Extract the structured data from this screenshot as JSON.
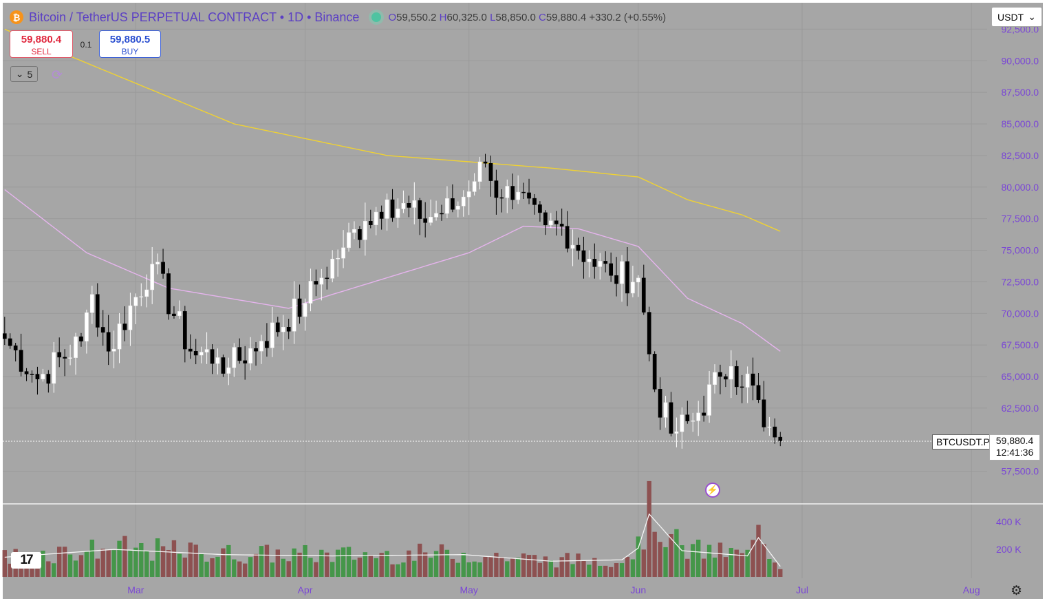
{
  "header": {
    "symbol": "Bitcoin / TetherUS PERPETUAL CONTRACT • 1D • Binance",
    "open_label": "O",
    "open": "59,550.2",
    "high_label": "H",
    "high": "60,325.0",
    "low_label": "L",
    "low": "58,850.0",
    "close_label": "C",
    "close": "59,880.4",
    "change": "+330.2 (+0.55%)"
  },
  "trade": {
    "sell_price": "59,880.4",
    "sell_label": "SELL",
    "spread": "0.1",
    "buy_price": "59,880.5",
    "buy_label": "BUY"
  },
  "indicators_collapsed": {
    "count": "5"
  },
  "currency": "USDT",
  "symbol_tag": "BTCUSDT.P",
  "last_price": "59,880.4",
  "countdown": "12:41:36",
  "icons": {
    "coin": "bitcoin-icon",
    "live": "live-dot-icon",
    "collapse": "chevron-down-icon",
    "reload": "refresh-icon",
    "dropdown": "chevron-down-icon",
    "bolt": "lightning-icon",
    "settings": "gear-icon",
    "logo": "tradingview-logo"
  },
  "colors": {
    "chart_background": "#a6a6a6",
    "up_candle": "#ffffff",
    "down_candle": "#000000",
    "ma_long": "#f0d232",
    "ma_short": "#e6b4ee",
    "volume_up": "#45964a",
    "volume_down": "#8d5151",
    "axis_text": "#7a46d6"
  },
  "chart_data": {
    "type": "candlestick",
    "price_axis_labels": [
      "92,500.0",
      "90,000.0",
      "87,500.0",
      "85,000.0",
      "82,500.0",
      "80,000.0",
      "77,500.0",
      "75,000.0",
      "72,500.0",
      "70,000.0",
      "67,500.0",
      "65,000.0",
      "62,500.0",
      "57,500.0"
    ],
    "price_axis_values": [
      92500,
      90000,
      87500,
      85000,
      82500,
      80000,
      77500,
      75000,
      72500,
      70000,
      67500,
      65000,
      62500,
      57500
    ],
    "volume_axis_labels": [
      "400 K",
      "200 K"
    ],
    "volume_axis_values": [
      400000,
      200000
    ],
    "x_axis_labels": [
      "Mar",
      "Apr",
      "May",
      "Jun",
      "Jul",
      "Aug"
    ],
    "x_axis_day_index": [
      24,
      55,
      85,
      116,
      146,
      177
    ],
    "first_candle_date": "2024-02-05",
    "last_candle_day_index": 142,
    "current_price": 59880.4,
    "key_points": [
      {
        "day": 0,
        "close": 68000
      },
      {
        "day": 6,
        "close": 64800
      },
      {
        "day": 14,
        "close": 67800
      },
      {
        "day": 16,
        "close": 71500
      },
      {
        "day": 19,
        "close": 67000
      },
      {
        "day": 27,
        "close": 73900
      },
      {
        "day": 34,
        "close": 67000
      },
      {
        "day": 39,
        "close": 66500
      },
      {
        "day": 41,
        "close": 65700
      },
      {
        "day": 47,
        "close": 67800
      },
      {
        "day": 55,
        "close": 70800
      },
      {
        "day": 57,
        "close": 72300
      },
      {
        "day": 62,
        "close": 75200
      },
      {
        "day": 66,
        "close": 77300
      },
      {
        "day": 70,
        "close": 79000
      },
      {
        "day": 76,
        "close": 77500
      },
      {
        "day": 83,
        "close": 78500
      },
      {
        "day": 87,
        "close": 82000
      },
      {
        "day": 89,
        "close": 80500
      },
      {
        "day": 93,
        "close": 79000
      },
      {
        "day": 99,
        "close": 77000
      },
      {
        "day": 102,
        "close": 76900
      },
      {
        "day": 107,
        "close": 74300
      },
      {
        "day": 111,
        "close": 73000
      },
      {
        "day": 116,
        "close": 72800
      },
      {
        "day": 119,
        "close": 64000
      },
      {
        "day": 122,
        "close": 60500
      },
      {
        "day": 126,
        "close": 61500
      },
      {
        "day": 131,
        "close": 65000
      },
      {
        "day": 133,
        "close": 65800
      },
      {
        "day": 137,
        "close": 64300
      },
      {
        "day": 139,
        "close": 61000
      },
      {
        "day": 141,
        "close": 60200
      },
      {
        "day": 142,
        "close": 59880
      }
    ],
    "moving_average_long": [
      {
        "day": 0,
        "value": 92500
      },
      {
        "day": 14,
        "value": 90000
      },
      {
        "day": 42,
        "value": 85000
      },
      {
        "day": 70,
        "value": 82500
      },
      {
        "day": 100,
        "value": 81500
      },
      {
        "day": 116,
        "value": 80800
      },
      {
        "day": 125,
        "value": 79000
      },
      {
        "day": 135,
        "value": 77800
      },
      {
        "day": 142,
        "value": 76500
      }
    ],
    "moving_average_short": [
      {
        "day": 0,
        "value": 79800
      },
      {
        "day": 15,
        "value": 74800
      },
      {
        "day": 30,
        "value": 72000
      },
      {
        "day": 52,
        "value": 70400
      },
      {
        "day": 60,
        "value": 71500
      },
      {
        "day": 85,
        "value": 74800
      },
      {
        "day": 95,
        "value": 76900
      },
      {
        "day": 105,
        "value": 76700
      },
      {
        "day": 116,
        "value": 75300
      },
      {
        "day": 125,
        "value": 71200
      },
      {
        "day": 135,
        "value": 69200
      },
      {
        "day": 142,
        "value": 67000
      }
    ],
    "volume_profile": [
      {
        "day": 0,
        "value": 150000
      },
      {
        "day": 20,
        "value": 210000
      },
      {
        "day": 40,
        "value": 170000
      },
      {
        "day": 60,
        "value": 160000
      },
      {
        "day": 84,
        "value": 170000
      },
      {
        "day": 100,
        "value": 120000
      },
      {
        "day": 113,
        "value": 130000
      },
      {
        "day": 116,
        "value": 220000
      },
      {
        "day": 118,
        "value": 480000
      },
      {
        "day": 124,
        "value": 200000
      },
      {
        "day": 136,
        "value": 160000
      },
      {
        "day": 138,
        "value": 300000
      },
      {
        "day": 142,
        "value": 80000
      }
    ]
  }
}
